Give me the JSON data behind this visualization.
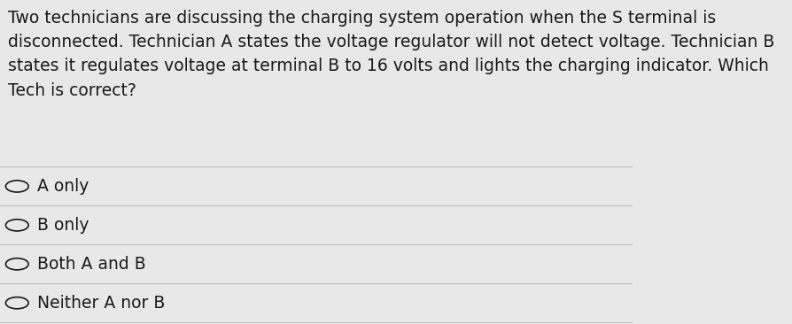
{
  "background_color": "#e8e8e8",
  "question_text": "Two technicians are discussing the charging system operation when the S terminal is\ndisconnected. Technician A states the voltage regulator will not detect voltage. Technician B\nstates it regulates voltage at terminal B to 16 volts and lights the charging indicator. Which\nTech is correct?",
  "options": [
    "A only",
    "B only",
    "Both A and B",
    "Neither A nor B"
  ],
  "text_color": "#1a1a1a",
  "line_color": "#c0c0c0",
  "question_font_size": 13.5,
  "option_font_size": 13.5,
  "circle_color": "#1a1a1a",
  "fig_width": 8.95,
  "fig_height": 3.66
}
